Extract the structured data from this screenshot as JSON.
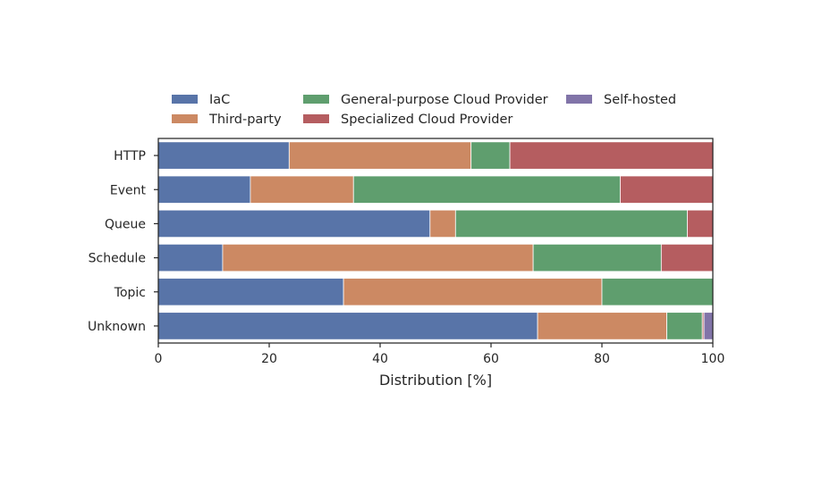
{
  "chart_data": {
    "type": "bar",
    "orientation": "horizontal",
    "stacked": true,
    "categories": [
      "HTTP",
      "Event",
      "Queue",
      "Schedule",
      "Topic",
      "Unknown"
    ],
    "series": [
      {
        "name": "IaC",
        "color": "#5874a8",
        "values": [
          23.6,
          16.6,
          49.0,
          11.6,
          33.4,
          68.4
        ]
      },
      {
        "name": "Third-party",
        "color": "#cc8963",
        "values": [
          32.8,
          18.6,
          4.6,
          56.0,
          46.6,
          23.3
        ]
      },
      {
        "name": "General-purpose Cloud Provider",
        "color": "#5f9e6e",
        "values": [
          7.0,
          48.1,
          41.8,
          23.1,
          20.0,
          6.4
        ]
      },
      {
        "name": "Specialized Cloud Provider",
        "color": "#b55d60",
        "values": [
          36.6,
          16.7,
          4.6,
          9.3,
          0.0,
          0.3
        ]
      },
      {
        "name": "Self-hosted",
        "color": "#8174a8",
        "values": [
          0.0,
          0.0,
          0.0,
          0.0,
          0.0,
          1.6
        ]
      }
    ],
    "xlabel": "Distribution [%]",
    "ylabel": "",
    "xlim": [
      0,
      100
    ],
    "xticks": [
      0,
      20,
      40,
      60,
      80,
      100
    ],
    "grid": false,
    "legend_position": "top"
  }
}
